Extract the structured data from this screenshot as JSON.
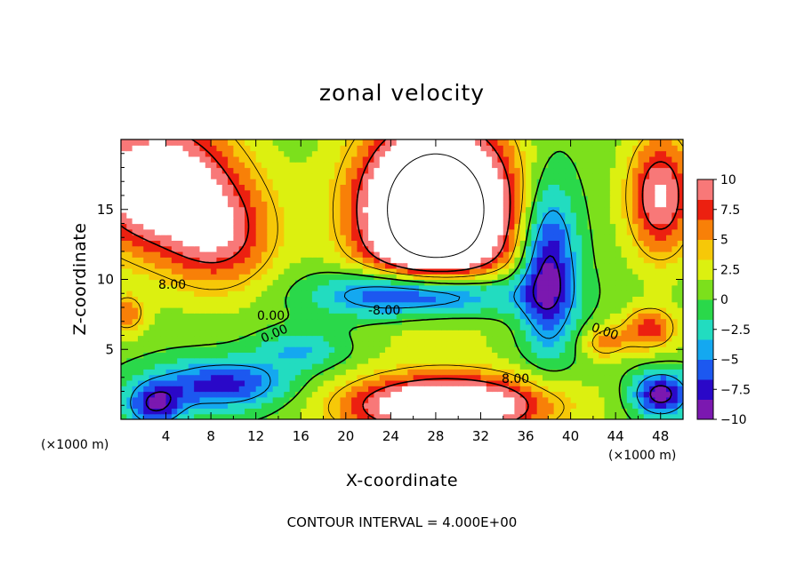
{
  "chart_data": {
    "type": "heatmap",
    "title": "zonal velocity",
    "xlabel": "X-coordinate",
    "ylabel": "Z-coordinate",
    "x_unit_label": "(×1000 m)",
    "x_unit_label_right": "(×1000 m)",
    "xlim": [
      0,
      50
    ],
    "ylim": [
      0,
      20
    ],
    "x_ticks": [
      4,
      8,
      12,
      16,
      20,
      24,
      28,
      32,
      36,
      40,
      44,
      48
    ],
    "y_ticks": [
      5,
      10,
      15
    ],
    "colorbar": {
      "ticks": [
        10,
        7.5,
        5,
        2.5,
        0,
        -2.5,
        -5,
        -7.5,
        -10
      ],
      "tick_labels": [
        "10",
        "7.5",
        "5",
        "2.5",
        "0",
        "−2.5",
        "−5",
        "−7.5",
        "−10"
      ],
      "range": [
        -10,
        10
      ],
      "colors": [
        "#7b18b0",
        "#2a08c8",
        "#1c58f0",
        "#14a8f0",
        "#22dcc0",
        "#2ad84a",
        "#7ce01c",
        "#dcf010",
        "#f6c808",
        "#f88008",
        "#ec2010",
        "#f87878",
        "#ffffff"
      ]
    },
    "contour_labels": [
      "8.00",
      "0.00",
      "0.00",
      "-8.00",
      "0.00",
      "8.00"
    ],
    "footer": "CONTOUR INTERVAL = 4.000E+00"
  }
}
